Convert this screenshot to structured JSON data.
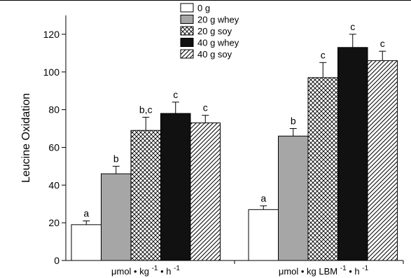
{
  "chart_data": {
    "type": "bar",
    "title": "",
    "ylabel": "Leucine Oxidation",
    "ylim": [
      0,
      130
    ],
    "yticks": [
      0,
      20,
      40,
      60,
      80,
      100,
      120
    ],
    "grid": false,
    "legend_position": "top-center",
    "groups": [
      {
        "label_parts": [
          "μmol",
          "•",
          "kg",
          "-1",
          "•",
          "h",
          "-1"
        ],
        "values": [
          19,
          46,
          69,
          78,
          73
        ],
        "errors": [
          2,
          4,
          7,
          6,
          4
        ],
        "letters": [
          "a",
          "b",
          "b,c",
          "c",
          "c"
        ]
      },
      {
        "label_parts": [
          "μmol",
          "•",
          "kg LBM",
          "-1",
          "•",
          "h",
          "-1"
        ],
        "values": [
          27,
          66,
          97,
          113,
          106
        ],
        "errors": [
          2,
          4,
          8,
          7,
          5
        ],
        "letters": [
          "a",
          "b",
          "c",
          "c",
          "c"
        ]
      }
    ],
    "series": [
      {
        "name": "0 g",
        "pattern": "white"
      },
      {
        "name": "20 g whey",
        "pattern": "gray"
      },
      {
        "name": "20 g soy",
        "pattern": "crosshatch"
      },
      {
        "name": "40 g whey",
        "pattern": "black"
      },
      {
        "name": "40 g soy",
        "pattern": "diagonal"
      }
    ],
    "colors": {
      "gray": "#a6a6a6",
      "black": "#111111",
      "stroke": "#000000"
    }
  }
}
